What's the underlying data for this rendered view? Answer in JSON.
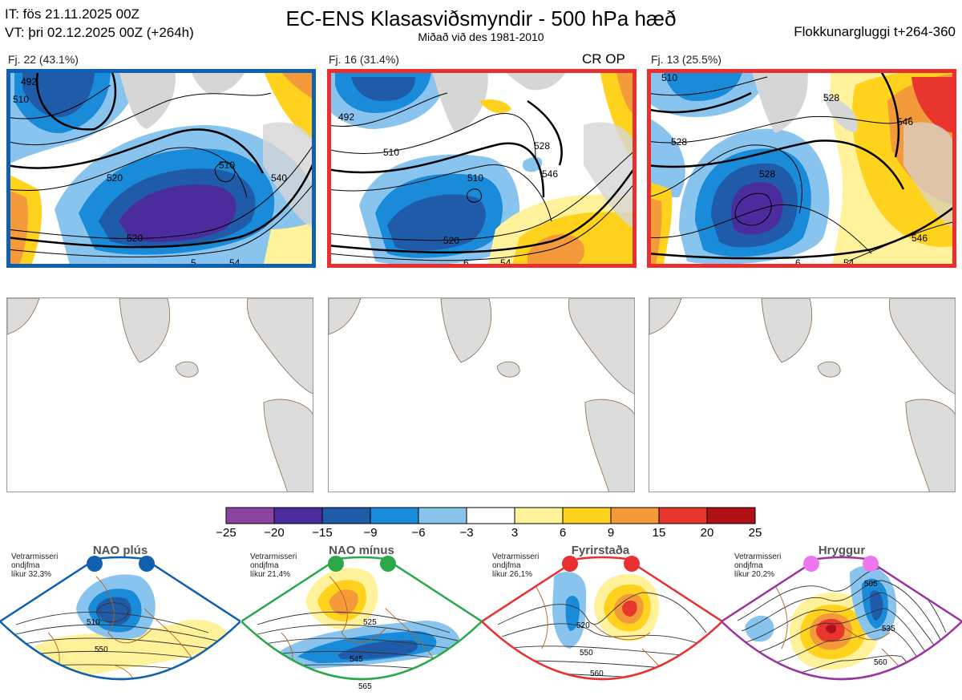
{
  "header": {
    "it_line": "IT: fös 21.11.2025 00Z",
    "vt_line": "VT: þri 02.12.2025 00Z  (+264h)",
    "title": "EC-ENS Klasasviðsmyndir - 500 hPa hæð",
    "subtitle": "Miðað við des 1981-2010",
    "window_label": "Flokkunargluggi t+264-360"
  },
  "clusters": [
    {
      "label": "Fj. 22 (43.1%)",
      "frame_color": "#1060b0",
      "contours": [
        "492",
        "510",
        "510",
        "520",
        "520",
        "540",
        "54",
        "5"
      ]
    },
    {
      "label": "Fj. 16 (31.4%)",
      "frame_color": "#e83030",
      "contours": [
        "492",
        "510",
        "510",
        "520",
        "528",
        "546",
        "54",
        "6"
      ],
      "tag": "CR OP"
    },
    {
      "label": "Fj. 13 (25.5%)",
      "frame_color": "#e83030",
      "contours": [
        "510",
        "528",
        "528",
        "528",
        "546",
        "546",
        "54",
        "6"
      ]
    }
  ],
  "colorbar": {
    "ticks": [
      "−25",
      "−20",
      "−15",
      "−9",
      "−6",
      "−3",
      "3",
      "6",
      "9",
      "15",
      "20",
      "25"
    ],
    "colors": [
      "#8a44a0",
      "#4a2c9c",
      "#1f5ba8",
      "#1a8bd8",
      "#88c4ee",
      "#ffffff",
      "#fff29a",
      "#ffd21e",
      "#f49a3a",
      "#e8362e",
      "#b01018"
    ]
  },
  "regimes": [
    {
      "title": "NAO plús",
      "note": [
        "Vetrarmisseri",
        "ondjfma",
        "líkur 32,3%"
      ],
      "color": "#1060b0",
      "dots": 2,
      "labels": [
        "510",
        "550"
      ]
    },
    {
      "title": "NAO mínus",
      "note": [
        "Vetrarmisseri",
        "ondjfma",
        "líkur 21,4%"
      ],
      "color": "#2aa84a",
      "dots": 2,
      "labels": [
        "525",
        "545",
        "565"
      ]
    },
    {
      "title": "Fyrirstaða",
      "note": [
        "Vetrarmisseri",
        "ondjfma",
        "líkur 26,1%"
      ],
      "color": "#e83030",
      "dots": 2,
      "labels": [
        "520",
        "550",
        "560"
      ]
    },
    {
      "title": "Hryggur",
      "note": [
        "Vetrarmisseri",
        "ondjfma",
        "líkur 20,2%"
      ],
      "color": "#9a35a0",
      "dots": 2,
      "labels": [
        "505",
        "535",
        "560"
      ]
    }
  ]
}
